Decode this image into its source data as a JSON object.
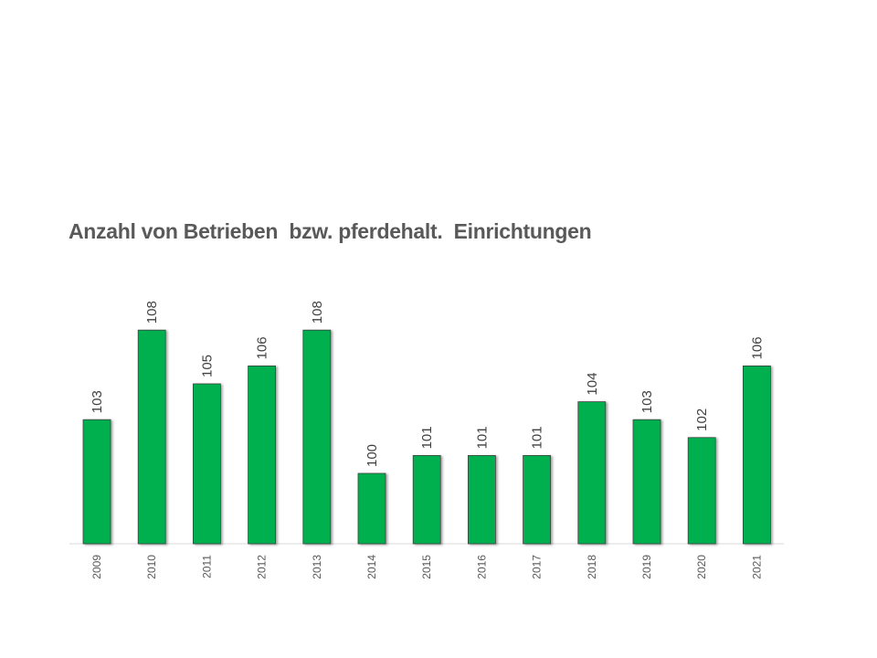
{
  "chart_data": {
    "type": "bar",
    "title": "Anzahl von Betrieben  bzw. pferdehalt.  Einrichtungen",
    "xlabel": "",
    "ylabel": "",
    "categories": [
      "2009",
      "2010",
      "2011",
      "2012",
      "2013",
      "2014",
      "2015",
      "2016",
      "2017",
      "2018",
      "2019",
      "2020",
      "2021"
    ],
    "values": [
      103,
      108,
      105,
      106,
      108,
      100,
      101,
      101,
      101,
      104,
      103,
      102,
      106
    ],
    "data_labels": true,
    "grid": false,
    "legend": "none",
    "bar_color": "#00b050",
    "bar_outline_color": "#404040"
  }
}
